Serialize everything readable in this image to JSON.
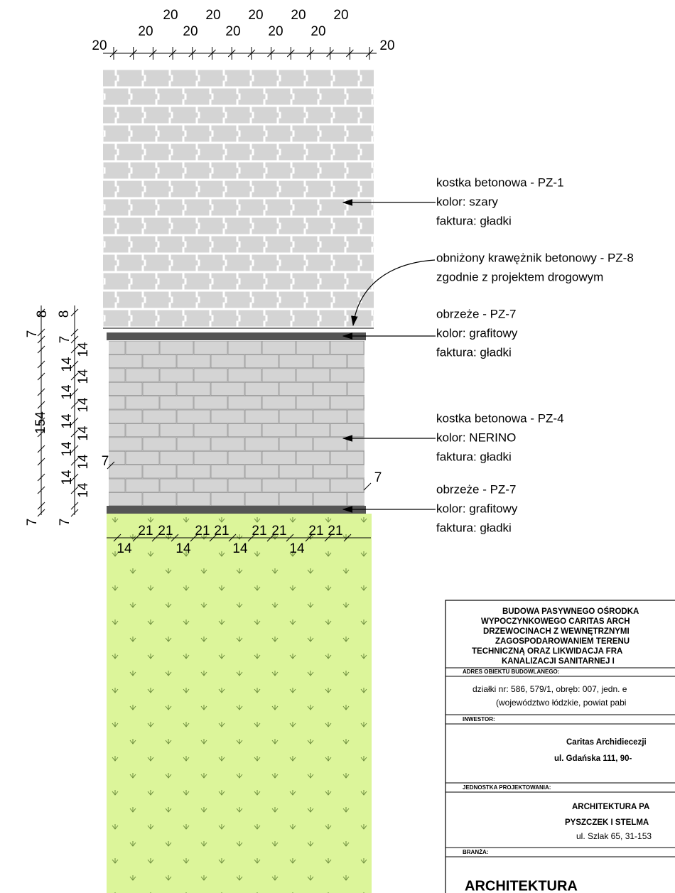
{
  "dimensions": {
    "top": [
      "20",
      "20",
      "20",
      "20",
      "20",
      "20",
      "20",
      "20",
      "20",
      "20",
      "20",
      "20"
    ],
    "left": [
      "8",
      "8",
      "7",
      "7",
      "14",
      "14",
      "14",
      "14",
      "14",
      "14",
      "14",
      "14",
      "14",
      "14",
      "14",
      "154",
      "7",
      "7",
      "7",
      "7"
    ],
    "bottom": [
      "21",
      "21",
      "21",
      "21",
      "21",
      "21",
      "21",
      "21",
      "14",
      "14",
      "14",
      "14"
    ]
  },
  "labels": [
    {
      "lines": [
        "kostka betonowa - PZ-1",
        "kolor: szary",
        "faktura: gładki"
      ]
    },
    {
      "lines": [
        "obniżony krawężnik betonowy - PZ-8",
        "zgodnie z projektem drogowym"
      ]
    },
    {
      "lines": [
        "obrzeże - PZ-7",
        "kolor: grafitowy",
        "faktura: gładki"
      ]
    },
    {
      "lines": [
        "kostka betonowa - PZ-4",
        "kolor: NERINO",
        "faktura: gładki"
      ]
    },
    {
      "lines": [
        "obrzeże - PZ-7",
        "kolor: grafitowy",
        "faktura: gładki"
      ]
    }
  ],
  "title_block": {
    "title": [
      "BUDOWA PASYWNEGO OŚRODKA",
      "WYPOCZYNKOWEGO CARITAS ARCH",
      "DRZEWOCINACH Z WEWNĘTRZNYMI",
      "ZAGOSPODAROWANIEM TERENU",
      "TECHNICZNĄ ORAZ LIKWIDACJA FRA",
      "KANALIZACJI SANITARNEJ I"
    ],
    "address_label": "ADRES OBIEKTU BUDOWLANEGO:",
    "address": [
      "działki nr: 586, 579/1, obręb: 007, jedn. e",
      "(województwo łódzkie, powiat pabi"
    ],
    "investor_label": "INWESTOR:",
    "investor": [
      "Caritas Archidiecezji",
      "ul. Gdańska 111,  90-"
    ],
    "designer_label": "JEDNOSTKA PROJEKTOWANIA:",
    "designer": [
      "ARCHITEKTURA PA",
      "PYSZCZEK I STELMA",
      "ul. Szlak 65, 31-153"
    ],
    "branch_label": "BRANŻA:",
    "branch": "ARCHITEKTURA"
  }
}
